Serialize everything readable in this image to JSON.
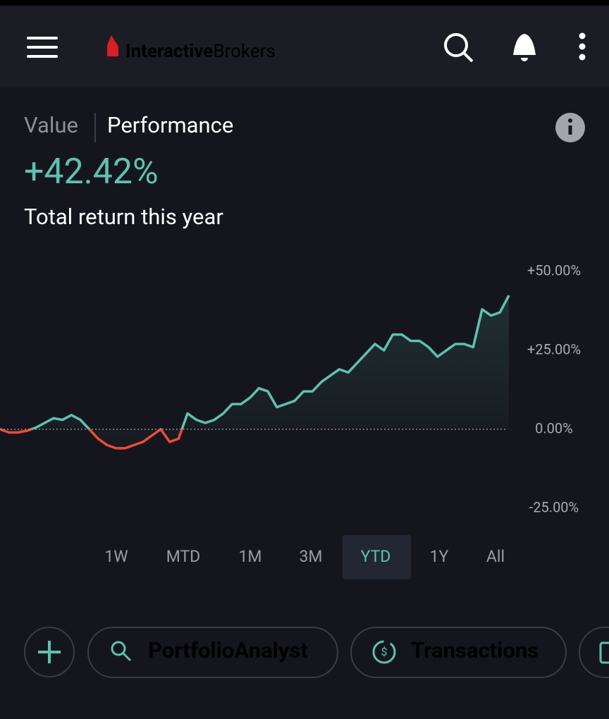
{
  "header": {
    "brand": [
      "Interactive",
      "Brokers"
    ]
  },
  "summary": {
    "tabs": [
      "Value",
      "Performance"
    ],
    "return": "+42.42%",
    "caption": "Total return this year"
  },
  "chart_data": {
    "type": "line",
    "values": [
      0,
      -1,
      -1,
      -0.5,
      0.5,
      2,
      3.5,
      3,
      4.5,
      3,
      0,
      -3,
      -5,
      -6,
      -6,
      -5,
      -4,
      -2,
      0,
      -4,
      -3,
      5,
      3,
      2,
      3,
      5,
      8,
      8,
      10,
      13,
      12,
      7,
      8,
      9,
      12,
      12,
      15,
      17,
      19,
      18,
      21,
      24,
      27,
      25,
      30,
      30,
      28,
      28,
      26,
      23,
      25,
      27,
      27,
      26,
      38,
      36,
      37,
      42.42
    ],
    "ylim": [
      -25,
      50
    ],
    "yticks": [
      {
        "value": 50,
        "label": "+50.00%"
      },
      {
        "value": 25,
        "label": "+25.00%"
      },
      {
        "value": 0,
        "label": "0.00%"
      },
      {
        "value": -25,
        "label": "-25.00%"
      }
    ],
    "positive_color": "#5fc1b0",
    "negative_color": "#ef4a3b"
  },
  "ranges": {
    "items": [
      "1W",
      "MTD",
      "1M",
      "3M",
      "YTD",
      "1Y",
      "All"
    ],
    "selected": 4
  },
  "actions": [
    "PortfolioAnalyst",
    "Transactions"
  ]
}
